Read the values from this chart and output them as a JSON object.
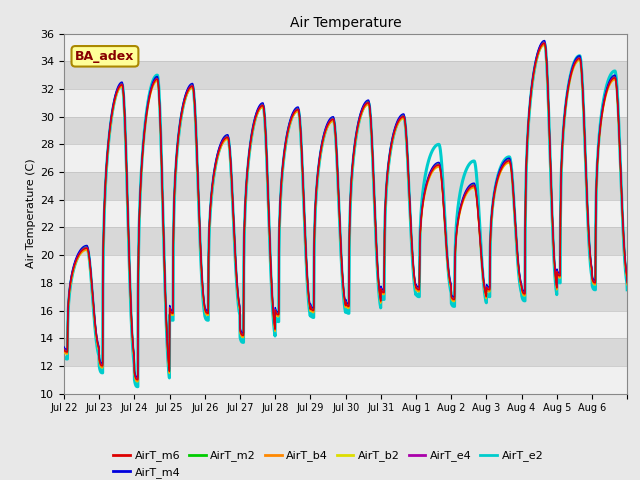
{
  "title": "Air Temperature",
  "ylabel": "Air Temperature (C)",
  "ylim": [
    10,
    36
  ],
  "yticks": [
    10,
    12,
    14,
    16,
    18,
    20,
    22,
    24,
    26,
    28,
    30,
    32,
    34,
    36
  ],
  "fig_bg": "#e8e8e8",
  "plot_bg_light": "#f0f0f0",
  "plot_bg_dark": "#d8d8d8",
  "grid_color": "#c0c0c0",
  "series_colors": {
    "AirT_m6": "#dd0000",
    "AirT_m4": "#0000dd",
    "AirT_m2": "#00cc00",
    "AirT_b4": "#ff8800",
    "AirT_b2": "#dddd00",
    "AirT_e4": "#aa00aa",
    "AirT_e2": "#00cccc"
  },
  "annotation_text": "BA_adex",
  "annotation_color": "#880000",
  "annotation_bg": "#ffff99",
  "annotation_border": "#aa8800",
  "x_tick_labels": [
    "Jul 22",
    "Jul 23",
    "Jul 24",
    "Jul 25",
    "Jul 26",
    "Jul 27",
    "Jul 28",
    "Jul 29",
    "Jul 30",
    "Jul 31",
    "Aug 1",
    "Aug 2",
    "Aug 3",
    "Aug 4",
    "Aug 5",
    "Aug 6"
  ],
  "day_peaks": [
    20.5,
    32.3,
    32.7,
    32.2,
    28.5,
    30.8,
    30.5,
    29.8,
    31.0,
    30.0,
    26.5,
    25.0,
    26.8,
    35.3,
    34.2,
    32.8
  ],
  "day_troughs": [
    13.0,
    12.0,
    11.0,
    15.8,
    15.8,
    14.2,
    15.7,
    16.0,
    16.3,
    17.3,
    17.5,
    16.8,
    17.5,
    17.2,
    18.5,
    18.0
  ],
  "e2_extra_peak": [
    0.0,
    0.0,
    0.3,
    0.0,
    0.0,
    0.0,
    0.0,
    0.0,
    0.0,
    0.0,
    1.5,
    1.8,
    0.3,
    0.0,
    0.2,
    0.5
  ],
  "e2_extra_trough": [
    0.5,
    0.5,
    0.5,
    0.5,
    0.5,
    0.5,
    0.5,
    0.5,
    0.5,
    0.5,
    0.5,
    0.5,
    0.5,
    0.5,
    0.5,
    0.5
  ]
}
